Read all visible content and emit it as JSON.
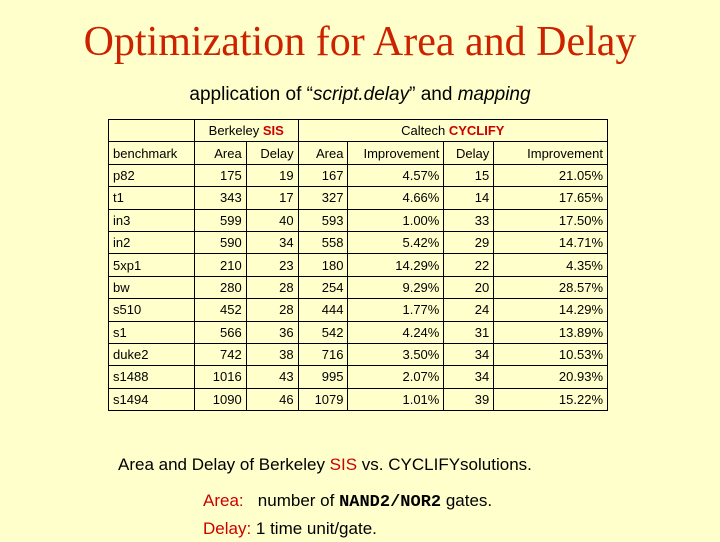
{
  "title": "Optimization for Area and Delay",
  "subtitle": {
    "prefix": "application of “",
    "script": "script.delay",
    "middle": "” and ",
    "mapping": "mapping"
  },
  "table": {
    "group_berkeley": {
      "name": "Berkeley ",
      "tool": "SIS"
    },
    "group_caltech": {
      "name": "Caltech ",
      "tool": "CYCLIFY"
    },
    "headers": [
      "benchmark",
      "Area",
      "Delay",
      "Area",
      "Improvement",
      "Delay",
      "Improvement"
    ],
    "rows": [
      [
        "p82",
        "175",
        "19",
        "167",
        "4.57%",
        "15",
        "21.05%"
      ],
      [
        "t1",
        "343",
        "17",
        "327",
        "4.66%",
        "14",
        "17.65%"
      ],
      [
        "in3",
        "599",
        "40",
        "593",
        "1.00%",
        "33",
        "17.50%"
      ],
      [
        "in2",
        "590",
        "34",
        "558",
        "5.42%",
        "29",
        "14.71%"
      ],
      [
        "5xp1",
        "210",
        "23",
        "180",
        "14.29%",
        "22",
        "4.35%"
      ],
      [
        "bw",
        "280",
        "28",
        "254",
        "9.29%",
        "20",
        "28.57%"
      ],
      [
        "s510",
        "452",
        "28",
        "444",
        "1.77%",
        "24",
        "14.29%"
      ],
      [
        "s1",
        "566",
        "36",
        "542",
        "4.24%",
        "31",
        "13.89%"
      ],
      [
        "duke2",
        "742",
        "38",
        "716",
        "3.50%",
        "34",
        "10.53%"
      ],
      [
        "s1488",
        "1016",
        "43",
        "995",
        "2.07%",
        "34",
        "20.93%"
      ],
      [
        "s1494",
        "1090",
        "46",
        "1079",
        "1.01%",
        "39",
        "15.22%"
      ]
    ]
  },
  "caption": {
    "part1": "Area and Delay of Berkeley ",
    "sis": "SIS",
    "part2": " vs. CYCLIFY",
    "part3": "solutions."
  },
  "notes": {
    "area_label": "Area:",
    "area_text_before": "   number of ",
    "area_gates": "NAND2/NOR2",
    "area_text_after": " gates.",
    "delay_label": "Delay:",
    "delay_text": " 1 time unit/gate."
  }
}
